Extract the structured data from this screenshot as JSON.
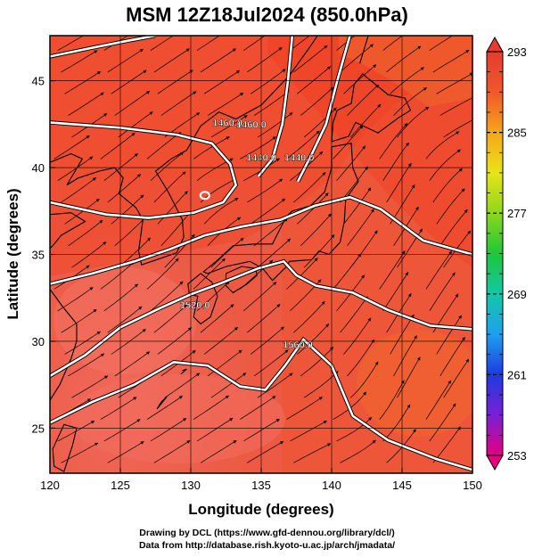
{
  "title": "MSM 12Z18Jul2024 (850.0hPa)",
  "axes": {
    "xlabel": "Longitude (degrees)",
    "ylabel": "Latitude  (degrees)",
    "x_range": [
      120,
      150
    ],
    "y_range": [
      22.4,
      47.6
    ],
    "x_ticks": [
      120,
      125,
      130,
      135,
      140,
      145,
      150
    ],
    "y_ticks": [
      25,
      30,
      35,
      40,
      45
    ]
  },
  "colorbar": {
    "min": 253,
    "max": 293,
    "labels": [
      293,
      285,
      277,
      269,
      261,
      253
    ],
    "colors": [
      "#e6007e",
      "#7a1fd6",
      "#1d3be0",
      "#1ea0ef",
      "#13c7a6",
      "#1ec63a",
      "#8cd71c",
      "#e8e41a",
      "#f6a51b",
      "#f0582a",
      "#e53c30"
    ]
  },
  "contours": [
    {
      "label": "1460.0"
    },
    {
      "label": "1440.0"
    },
    {
      "label": "1440.0"
    },
    {
      "label": "1520.0"
    },
    {
      "label": "1560.0"
    }
  ],
  "credits": {
    "line1": "Drawing by DCL (https://www.gfd-dennou.org/library/dcl/)",
    "line2": "Data from http://database.rish.kyoto-u.ac.jp/arch/jmadata/"
  }
}
